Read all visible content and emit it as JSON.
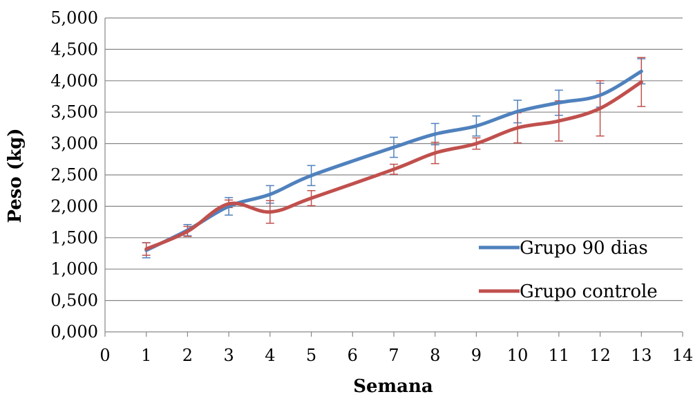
{
  "chart_data": {
    "type": "line",
    "title": "",
    "xlabel": "Semana",
    "ylabel": "Peso (kg)",
    "xlim": [
      0,
      14
    ],
    "ylim": [
      0,
      5000
    ],
    "x_ticks": [
      0,
      1,
      2,
      3,
      4,
      5,
      6,
      7,
      8,
      9,
      10,
      11,
      12,
      13,
      14
    ],
    "x_tick_labels": [
      "0",
      "1",
      "2",
      "3",
      "4",
      "5",
      "6",
      "7",
      "8",
      "9",
      "10",
      "11",
      "12",
      "13",
      "14"
    ],
    "y_ticks": [
      0,
      500,
      1000,
      1500,
      2000,
      2500,
      3000,
      3500,
      4000,
      4500,
      5000
    ],
    "y_tick_labels": [
      "0,000",
      "0,500",
      "1,000",
      "1,500",
      "2,000",
      "2,500",
      "3,000",
      "3,500",
      "4,000",
      "4,500",
      "5,000"
    ],
    "grid": "horizontal",
    "legend_position": "right",
    "series": [
      {
        "name": "Grupo 90 dias",
        "color": "#4F81BD",
        "x": [
          1,
          2,
          3,
          4,
          5,
          7,
          8,
          9,
          10,
          11,
          12,
          13
        ],
        "y": [
          1300,
          1620,
          2000,
          2190,
          2490,
          2940,
          3150,
          3280,
          3510,
          3650,
          3770,
          4150
        ],
        "error": [
          120,
          90,
          140,
          140,
          160,
          160,
          170,
          160,
          180,
          200,
          190,
          200
        ]
      },
      {
        "name": "Grupo controle",
        "color": "#C0504D",
        "x": [
          1,
          2,
          3,
          4,
          5,
          7,
          8,
          9,
          10,
          11,
          12,
          13
        ],
        "y": [
          1320,
          1600,
          2040,
          1910,
          2130,
          2590,
          2850,
          3000,
          3250,
          3360,
          3560,
          3980
        ],
        "error": [
          100,
          80,
          60,
          180,
          120,
          80,
          170,
          90,
          240,
          320,
          440,
          390
        ]
      }
    ]
  }
}
